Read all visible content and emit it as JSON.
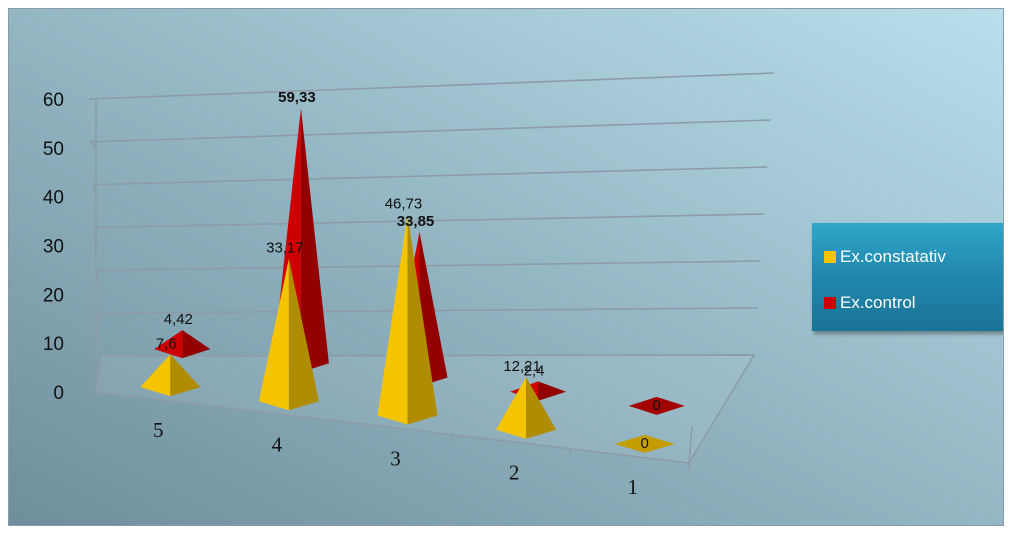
{
  "chart_data": {
    "type": "bar",
    "style": "3d-pyramid",
    "categories": [
      "5",
      "4",
      "3",
      "2",
      "1"
    ],
    "series": [
      {
        "name": "Ex.constatativ",
        "values": [
          7.6,
          33.17,
          46.73,
          12.21,
          0
        ],
        "labels": [
          "7,6",
          "33,17",
          "46,73",
          "12,21",
          "0"
        ],
        "color": "#f5c400"
      },
      {
        "name": "Ex.control",
        "values": [
          4.42,
          59.33,
          33.85,
          2.4,
          0
        ],
        "labels": [
          "4,42",
          "59,33",
          "33,85",
          "2,4",
          "0"
        ],
        "color": "#cc0000"
      }
    ],
    "bold_labels": [
      "59,33",
      "33,85"
    ],
    "y_ticks": [
      0,
      10,
      20,
      30,
      40,
      50,
      60
    ],
    "ylim": [
      0,
      60
    ],
    "grid": true,
    "legend": "right",
    "background": [
      "#b9dfec",
      "#6f8e9c"
    ]
  }
}
